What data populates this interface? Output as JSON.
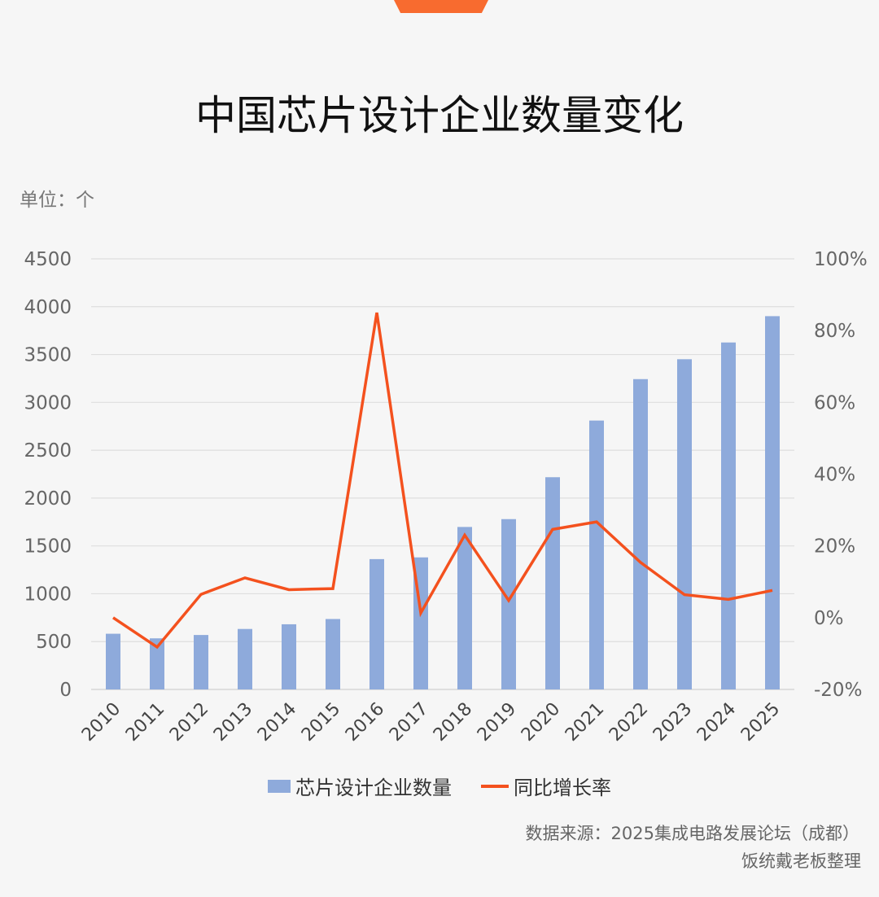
{
  "title": "中国芯片设计企业数量变化",
  "unit_label": "单位：个",
  "legend": {
    "bar_label": "芯片设计企业数量",
    "line_label": "同比增长率"
  },
  "source": "数据来源：2025集成电路发展论坛（成都）",
  "credit": "饭统戴老板整理",
  "colors": {
    "bar": "#8eaadb",
    "line": "#f4511e",
    "accent": "#f86b2f"
  },
  "chart_data": {
    "type": "bar",
    "categories": [
      "2010",
      "2011",
      "2012",
      "2013",
      "2014",
      "2015",
      "2016",
      "2017",
      "2018",
      "2019",
      "2020",
      "2021",
      "2022",
      "2023",
      "2024",
      "2025"
    ],
    "series": [
      {
        "name": "芯片设计企业数量",
        "type": "bar",
        "axis": "left",
        "values": [
          582,
          534,
          569,
          632,
          681,
          736,
          1362,
          1380,
          1698,
          1780,
          2218,
          2810,
          3243,
          3451,
          3626,
          3901
        ]
      },
      {
        "name": "同比增长率",
        "type": "line",
        "axis": "right",
        "values": [
          0.0,
          -8.2,
          6.5,
          11.1,
          7.8,
          8.1,
          85.0,
          1.3,
          23.0,
          4.8,
          24.6,
          26.7,
          15.4,
          6.4,
          5.1,
          7.6
        ]
      }
    ],
    "y_left": {
      "lim": [
        0,
        4500
      ],
      "ticks": [
        "4500",
        "4000",
        "3500",
        "3000",
        "2500",
        "2000",
        "1500",
        "1000",
        "500",
        "0"
      ]
    },
    "y_right": {
      "lim": [
        -20,
        100
      ],
      "ticks": [
        "100%",
        "80%",
        "60%",
        "40%",
        "20%",
        "0%",
        "-20%"
      ]
    },
    "grid": true,
    "legend_position": "bottom"
  }
}
